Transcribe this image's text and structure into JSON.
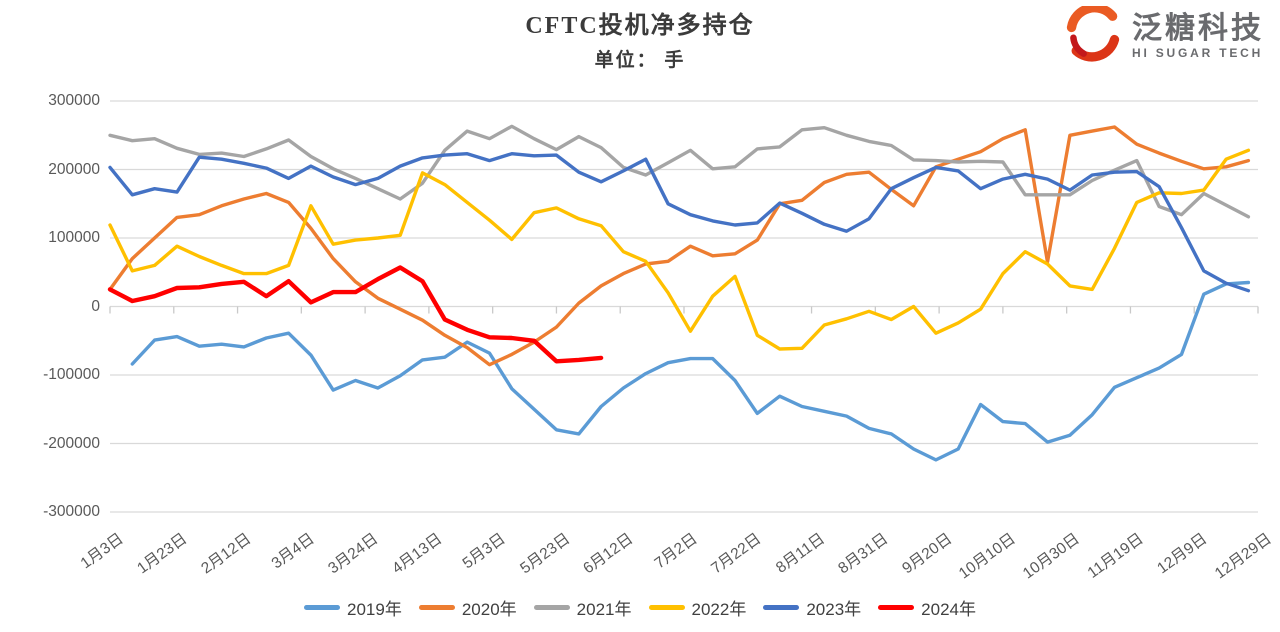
{
  "header": {
    "title": "CFTC投机净多持仓",
    "subtitle": "单位： 手"
  },
  "logo": {
    "name": "泛糖科技",
    "tagline": "HI SUGAR TECH",
    "icon": "swirl-s-logo",
    "text_color": "#6a6b6e",
    "accent_color": "#e8501e"
  },
  "chart_data": {
    "type": "line",
    "title": "CFTC投机净多持仓",
    "subtitle": "单位： 手",
    "unit": "手",
    "ylim": [
      -300000,
      300000
    ],
    "y_tick_values": [
      300000,
      200000,
      100000,
      0,
      -100000,
      -200000,
      -300000
    ],
    "y_tick_labels": [
      "300000",
      "200000",
      "100000",
      "0",
      "-100000",
      "-200000",
      "-300000"
    ],
    "x_tick_labels": [
      "1月3日",
      "1月23日",
      "2月12日",
      "3月4日",
      "3月24日",
      "4月13日",
      "5月3日",
      "5月23日",
      "6月12日",
      "7月2日",
      "7月22日",
      "8月11日",
      "8月31日",
      "9月20日",
      "10月10日",
      "10月30日",
      "11月19日",
      "12月9日",
      "12月29日"
    ],
    "x_tick_interval_days": 20,
    "x_total_days": 360,
    "point_interval_days": 7,
    "grid": true,
    "legend_position": "bottom",
    "grid_color": "#d9d9d9",
    "label_color": "#595959",
    "series": [
      {
        "name": "2019年",
        "color": "#5B9BD5",
        "values": [
          null,
          -84000,
          -49000,
          -44000,
          -58000,
          -55000,
          -59000,
          -46000,
          -39000,
          -71000,
          -122000,
          -108000,
          -119000,
          -101000,
          -78000,
          -74000,
          -52000,
          -68000,
          -120000,
          -150000,
          -180000,
          -186000,
          -146000,
          -119000,
          -98000,
          -82000,
          -76000,
          -76000,
          -108000,
          -156000,
          -131000,
          -146000,
          -153000,
          -160000,
          -178000,
          -186000,
          -208000,
          -224000,
          -208000,
          -143000,
          -168000,
          -171000,
          -198000,
          -188000,
          -158000,
          -118000,
          -104000,
          -90000,
          -70000,
          18000,
          33000,
          35000
        ]
      },
      {
        "name": "2020年",
        "color": "#ED7D31",
        "values": [
          25000,
          70000,
          100000,
          130000,
          134000,
          147000,
          157000,
          165000,
          152000,
          114000,
          70000,
          36000,
          12000,
          -4000,
          -20000,
          -42000,
          -60000,
          -85000,
          -70000,
          -52000,
          -30000,
          5000,
          30000,
          48000,
          62000,
          66000,
          88000,
          74000,
          77000,
          97000,
          150000,
          155000,
          181000,
          193000,
          196000,
          171000,
          147000,
          204000,
          215000,
          226000,
          245000,
          258000,
          65000,
          250000,
          256000,
          262000,
          237000,
          224000,
          212000,
          201000,
          204000,
          213000
        ]
      },
      {
        "name": "2021年",
        "color": "#A5A5A5",
        "values": [
          250000,
          242000,
          245000,
          231000,
          222000,
          224000,
          219000,
          230000,
          243000,
          219000,
          201000,
          187000,
          172000,
          157000,
          180000,
          228000,
          256000,
          245000,
          263000,
          245000,
          229000,
          248000,
          232000,
          203000,
          192000,
          210000,
          228000,
          201000,
          204000,
          230000,
          233000,
          258000,
          261000,
          250000,
          241000,
          235000,
          214000,
          213000,
          211000,
          212000,
          211000,
          163000,
          163000,
          163000,
          184000,
          199000,
          213000,
          146000,
          134000,
          165000,
          148000,
          131000
        ]
      },
      {
        "name": "2022年",
        "color": "#FFC000",
        "values": [
          119000,
          52000,
          60000,
          88000,
          73000,
          60000,
          48000,
          48000,
          60000,
          147000,
          91000,
          97000,
          100000,
          104000,
          195000,
          178000,
          152000,
          126000,
          98000,
          137000,
          144000,
          128000,
          118000,
          80000,
          66000,
          20000,
          -36000,
          15000,
          44000,
          -42000,
          -62000,
          -61000,
          -27000,
          -18000,
          -7000,
          -19000,
          0,
          -39000,
          -24000,
          -4000,
          48000,
          80000,
          62000,
          30000,
          25000,
          85000,
          152000,
          166000,
          165000,
          170000,
          215000,
          228000
        ]
      },
      {
        "name": "2023年",
        "color": "#4472C4",
        "values": [
          203000,
          163000,
          172000,
          167000,
          218000,
          215000,
          209000,
          202000,
          187000,
          205000,
          189000,
          178000,
          187000,
          205000,
          217000,
          221000,
          223000,
          213000,
          223000,
          220000,
          221000,
          196000,
          182000,
          198000,
          215000,
          150000,
          134000,
          125000,
          119000,
          122000,
          151000,
          136000,
          120000,
          110000,
          128000,
          172000,
          188000,
          203000,
          198000,
          172000,
          186000,
          193000,
          186000,
          170000,
          192000,
          196000,
          197000,
          175000,
          115000,
          52000,
          34000,
          23000
        ]
      },
      {
        "name": "2024年",
        "color": "#FF0000",
        "values": [
          25000,
          8000,
          15000,
          27000,
          28000,
          33000,
          36000,
          15000,
          37000,
          6000,
          21000,
          21000,
          40000,
          57000,
          37000,
          -19000,
          -34000,
          -45000,
          -46000,
          -50000,
          -80000,
          -78000,
          -75000,
          null,
          null,
          null,
          null,
          null,
          null,
          null,
          null,
          null,
          null,
          null,
          null,
          null,
          null,
          null,
          null,
          null,
          null,
          null,
          null,
          null,
          null,
          null,
          null,
          null,
          null,
          null,
          null,
          null
        ]
      }
    ]
  }
}
